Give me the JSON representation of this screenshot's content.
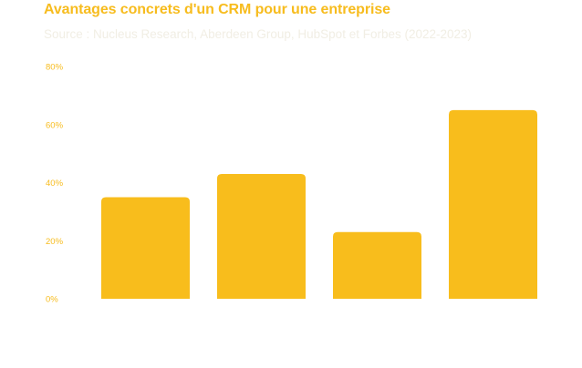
{
  "title": "Avantages concrets d'un CRM pour une entreprise",
  "subtitle": "Source : Nucleus Research, Aberdeen Group, HubSpot et Forbes (2022-2023)",
  "colors": {
    "bar": "#f8bd1c",
    "title": "#f7bc1e",
    "subtitle": "#f1eee4",
    "tick": "#f7bc1e"
  },
  "chart_data": {
    "type": "bar",
    "title": "Avantages concrets d'un CRM pour une entreprise",
    "subtitle": "Source : Nucleus Research, Aberdeen Group, HubSpot et Forbes (2022-2023)",
    "categories": [
      "",
      "",
      "",
      ""
    ],
    "values": [
      35,
      43,
      23,
      65
    ],
    "xlabel": "",
    "ylabel": "",
    "ylim": [
      0,
      80
    ],
    "yticks": [
      0,
      20,
      40,
      60,
      80
    ],
    "ytick_labels": [
      "0%",
      "20%",
      "40%",
      "60%",
      "80%"
    ],
    "grid": false,
    "legend": "none"
  }
}
